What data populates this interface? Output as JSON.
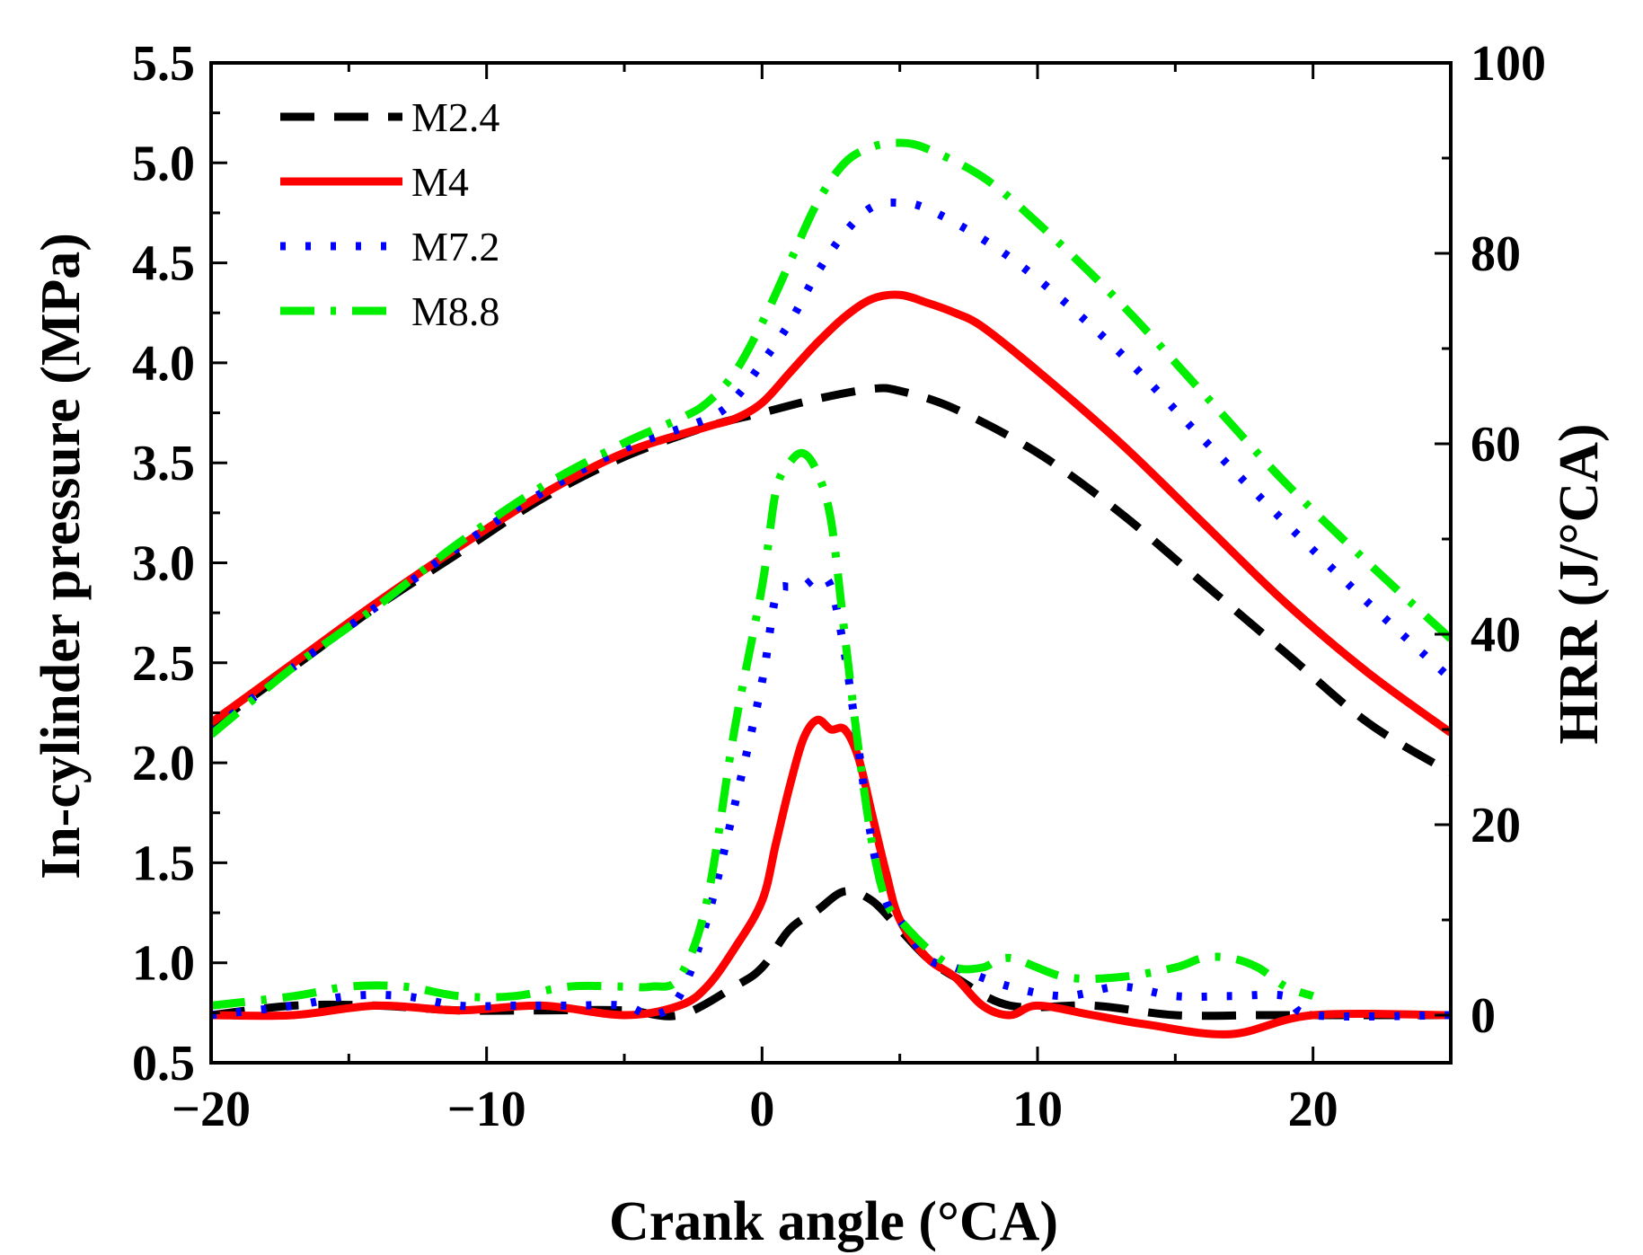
{
  "chart_data": {
    "type": "line",
    "title": "",
    "xlabel": "Crank angle (°CA)",
    "ylabel_left": "In-cylinder pressure (MPa)",
    "ylabel_right": "HRR (J/°CA)",
    "xlim": [
      -20,
      25
    ],
    "ylim_left": [
      0.5,
      5.5
    ],
    "ylim_right": [
      -5,
      100
    ],
    "x_ticks": [
      -20,
      -10,
      0,
      10,
      20
    ],
    "x_tick_labels": [
      "−20",
      "−10",
      "0",
      "10",
      "20"
    ],
    "y_left_ticks": [
      0.5,
      1.0,
      1.5,
      2.0,
      2.5,
      3.0,
      3.5,
      4.0,
      4.5,
      5.0,
      5.5
    ],
    "y_left_tick_labels": [
      "0.5",
      "1.0",
      "1.5",
      "2.0",
      "2.5",
      "3.0",
      "3.5",
      "4.0",
      "4.5",
      "5.0",
      "5.5"
    ],
    "y_right_ticks": [
      0,
      20,
      40,
      60,
      80,
      100
    ],
    "y_right_tick_labels": [
      "0",
      "20",
      "40",
      "60",
      "80",
      "100"
    ],
    "legend": {
      "position": "top-left",
      "entries": [
        "M2.4",
        "M4",
        "M7.2",
        "M8.8"
      ]
    },
    "series": [
      {
        "name": "M2.4",
        "color": "#000000",
        "dash": "dash",
        "pressure": {
          "x": [
            -20,
            -17,
            -14,
            -11,
            -8,
            -5,
            -2,
            0,
            2,
            4,
            5,
            7,
            10,
            13,
            16,
            19,
            22,
            25
          ],
          "y": [
            2.18,
            2.48,
            2.78,
            3.05,
            3.32,
            3.53,
            3.68,
            3.75,
            3.82,
            3.87,
            3.86,
            3.77,
            3.55,
            3.25,
            2.9,
            2.55,
            2.2,
            1.95
          ]
        },
        "hrr": {
          "x": [
            -20,
            -17,
            -14,
            -11,
            -8,
            -5,
            -3,
            -1,
            0,
            1,
            2,
            3,
            4,
            5,
            6,
            7,
            9,
            12,
            15,
            18,
            20,
            25
          ],
          "y": [
            0,
            1,
            1,
            0.5,
            0.5,
            0.5,
            0,
            3,
            5,
            9,
            11,
            13,
            12,
            9,
            6,
            4,
            1,
            1,
            0,
            0,
            0,
            0
          ]
        }
      },
      {
        "name": "M4",
        "color": "#ff0000",
        "dash": "solid",
        "pressure": {
          "x": [
            -20,
            -17,
            -14,
            -11,
            -8,
            -5,
            -2,
            -1,
            0,
            1,
            2,
            3,
            4,
            5,
            6,
            7,
            8,
            10,
            13,
            16,
            19,
            22,
            25
          ],
          "y": [
            2.2,
            2.5,
            2.8,
            3.08,
            3.34,
            3.55,
            3.68,
            3.72,
            3.8,
            3.95,
            4.1,
            4.23,
            4.32,
            4.34,
            4.3,
            4.25,
            4.18,
            3.96,
            3.6,
            3.2,
            2.8,
            2.45,
            2.15
          ]
        },
        "hrr": {
          "x": [
            -20,
            -17,
            -14,
            -11,
            -8,
            -5,
            -3,
            -2,
            -1,
            0,
            0.5,
            1,
            1.5,
            2,
            2.5,
            3,
            3.5,
            4,
            4.5,
            5,
            6,
            7,
            8,
            9,
            10,
            12,
            14,
            17,
            20,
            25
          ],
          "y": [
            0,
            0,
            1,
            0.5,
            1,
            0,
            1,
            3,
            7,
            12,
            18,
            24,
            29,
            31,
            30,
            30,
            27,
            21,
            15,
            10,
            6,
            4,
            1,
            0,
            1,
            0,
            -1,
            -2,
            0,
            0
          ]
        }
      },
      {
        "name": "M7.2",
        "color": "#0000ff",
        "dash": "dot",
        "pressure": {
          "x": [
            -20,
            -17,
            -14,
            -11,
            -8,
            -5,
            -2,
            -1,
            0,
            1,
            2,
            3,
            4,
            5,
            6,
            8,
            10,
            13,
            16,
            19,
            22,
            25
          ],
          "y": [
            2.16,
            2.48,
            2.78,
            3.08,
            3.35,
            3.57,
            3.72,
            3.82,
            4.0,
            4.2,
            4.45,
            4.65,
            4.78,
            4.8,
            4.77,
            4.62,
            4.42,
            4.05,
            3.62,
            3.2,
            2.8,
            2.42
          ]
        },
        "hrr": {
          "x": [
            -20,
            -17,
            -15,
            -13,
            -11,
            -9,
            -7,
            -5,
            -4,
            -3,
            -2,
            -1,
            0,
            0.5,
            1,
            1.5,
            2,
            2.5,
            3,
            3.5,
            4,
            4.5,
            5,
            6,
            7,
            9,
            11,
            13,
            15,
            17,
            19,
            20,
            25
          ],
          "y": [
            0,
            1,
            2,
            2,
            1,
            1,
            1,
            1,
            0,
            2,
            10,
            22,
            35,
            44,
            45,
            45,
            46,
            45,
            38,
            28,
            18,
            12,
            10,
            6,
            5,
            3,
            2,
            3,
            2,
            2,
            2,
            0,
            0
          ]
        }
      },
      {
        "name": "M8.8",
        "color": "#00ee00",
        "dash": "dashdot",
        "pressure": {
          "x": [
            -20,
            -17,
            -14,
            -11,
            -8,
            -5,
            -3,
            -2,
            -1,
            0,
            1,
            2,
            3,
            4,
            5,
            6,
            8,
            10,
            13,
            16,
            19,
            22,
            25
          ],
          "y": [
            2.14,
            2.48,
            2.78,
            3.1,
            3.38,
            3.6,
            3.72,
            3.8,
            3.95,
            4.2,
            4.5,
            4.8,
            5.0,
            5.08,
            5.1,
            5.07,
            4.93,
            4.7,
            4.3,
            3.85,
            3.4,
            3.0,
            2.62
          ]
        },
        "hrr": {
          "x": [
            -20,
            -17,
            -15,
            -13,
            -11,
            -9,
            -7,
            -5,
            -4,
            -3,
            -2,
            -1,
            0,
            0.5,
            1,
            1.5,
            2,
            2.5,
            3,
            3.5,
            4,
            4.5,
            5,
            6,
            7,
            8,
            9,
            11,
            13,
            15,
            16,
            17,
            18,
            19,
            20
          ],
          "y": [
            1,
            2,
            3,
            3,
            2,
            2,
            3,
            3,
            3,
            4,
            12,
            30,
            45,
            55,
            58,
            59,
            57,
            52,
            40,
            28,
            18,
            12,
            10,
            7,
            5,
            5,
            6,
            4,
            4,
            5,
            6,
            6,
            5,
            3,
            2
          ]
        }
      }
    ]
  }
}
